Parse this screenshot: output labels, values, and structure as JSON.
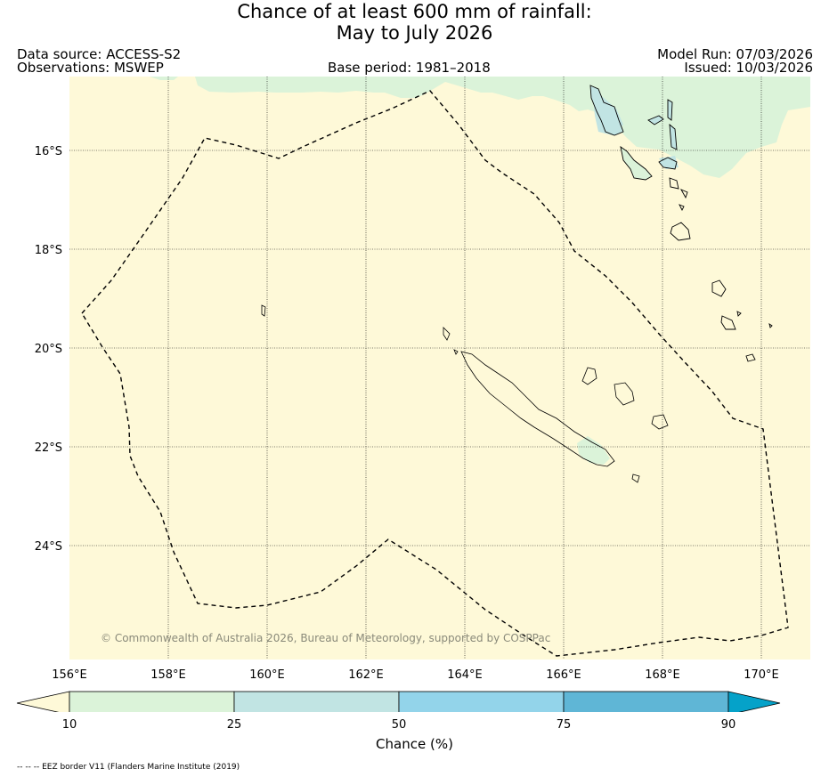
{
  "title_line1": "Chance of at least 600 mm of rainfall:",
  "title_line2": "May to July 2026",
  "data_source": "Data source: ACCESS-S2",
  "observations": "Observations: MSWEP",
  "base_period": "Base period: 1981–2018",
  "model_run": "Model Run: 07/03/2026",
  "issued": "Issued: 10/03/2026",
  "copyright": "© Commonwealth of Australia 2026, Bureau of Meteorology, supported by COSPPac",
  "footnote": "-- -- -- EEZ border V11 (Flanders Marine Institute (2019)",
  "lat_labels": [
    "16°S",
    "18°S",
    "20°S",
    "22°S",
    "24°S"
  ],
  "lon_labels": [
    "156°E",
    "158°E",
    "160°E",
    "162°E",
    "164°E",
    "166°E",
    "168°E",
    "170°E"
  ],
  "colorbar": {
    "label": "Chance (%)",
    "ticks": [
      "10",
      "25",
      "50",
      "75",
      "90"
    ],
    "colors": {
      "below_10": "#fef9d8",
      "10_25": "#dbf3d9",
      "25_50": "#c1e4e3",
      "50_75": "#93d4ea",
      "75_90": "#5fb6d6",
      "above_90": "#05a2c9"
    }
  },
  "map": {
    "background_color": "#fef9d8",
    "land_outline_color": "#000000",
    "eez_line": "dashed"
  }
}
